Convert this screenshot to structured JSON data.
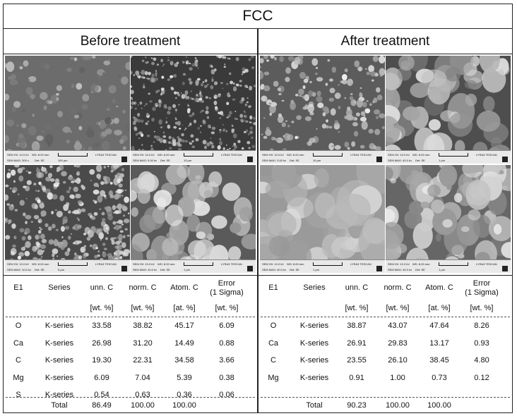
{
  "title": "FCC",
  "panels": [
    {
      "heading": "Before treatment",
      "micrographs": [
        {
          "hv": "SEM HV: 10.0 kV",
          "wd": "WD: 8.00 mm",
          "mag": "SEM MAG: 300 x",
          "det": "Det: SE",
          "scale": "100 µm",
          "brand": "LYRA3 TESCAN"
        },
        {
          "hv": "SEM HV: 10.0 kV",
          "wd": "WD: 8.00 mm",
          "mag": "SEM MAG: 5.00 kx",
          "det": "Det: SE",
          "scale": "10 µm",
          "brand": "LYRA3 TESCAN"
        },
        {
          "hv": "SEM HV: 10.0 kV",
          "wd": "WD: 8.00 mm",
          "mag": "SEM MAG: 10.0 kx",
          "det": "Det: SE",
          "scale": "5 µm",
          "brand": "LYRA3 TESCAN"
        },
        {
          "hv": "SEM HV: 10.0 kV",
          "wd": "WD: 8.00 mm",
          "mag": "SEM MAG: 40.0 kx",
          "det": "Det: SE",
          "scale": "1 µm",
          "brand": "LYRA3 TESCAN"
        }
      ],
      "table": {
        "headers": [
          "E1",
          "Series",
          "unn. C",
          "norm. C",
          "Atom. C",
          "Error\n(1 Sigma)"
        ],
        "units": [
          "",
          "",
          "[wt. %]",
          "[wt. %]",
          "[at. %]",
          "[wt. %]"
        ],
        "rows": [
          [
            "O",
            "K-series",
            "33.58",
            "38.82",
            "45.17",
            "6.09"
          ],
          [
            "Ca",
            "K-series",
            "26.98",
            "31.20",
            "14.49",
            "0.88"
          ],
          [
            "C",
            "K-series",
            "19.30",
            "22.31",
            "34.58",
            "3.66"
          ],
          [
            "Mg",
            "K-series",
            "6.09",
            "7.04",
            "5.39",
            "0.38"
          ],
          [
            "S",
            "K-series",
            "0.54",
            "0.63",
            "0.36",
            "0.06"
          ]
        ],
        "total": [
          "",
          "Total",
          "86.49",
          "100.00",
          "100.00",
          ""
        ]
      }
    },
    {
      "heading": "After treatment",
      "micrographs": [
        {
          "hv": "SEM HV: 10.0 kV",
          "wd": "WD: 8.00 mm",
          "mag": "SEM MAG: 3.00 kx",
          "det": "Det: SE",
          "scale": "10 µm",
          "brand": "LYRA3 TESCAN"
        },
        {
          "hv": "SEM HV: 10.0 kV",
          "wd": "WD: 8.00 mm",
          "mag": "SEM MAG: 40.0 kx",
          "det": "Det: SE",
          "scale": "1 µm",
          "brand": "LYRA3 TESCAN"
        },
        {
          "hv": "SEM HV: 10.0 kV",
          "wd": "WD: 8.00 mm",
          "mag": "SEM MAG: 40.0 kx",
          "det": "Det: SE",
          "scale": "1 µm",
          "brand": "LYRA3 TESCAN"
        },
        {
          "hv": "SEM HV: 10.0 kV",
          "wd": "WD: 8.00 mm",
          "mag": "SEM MAG: 40.0 kx",
          "det": "Det: SE",
          "scale": "1 µm",
          "brand": "LYRA3 TESCAN"
        }
      ],
      "table": {
        "headers": [
          "E1",
          "Series",
          "unn. C",
          "norm. C",
          "Atom. C",
          "Error\n(1 Sigma)"
        ],
        "units": [
          "",
          "",
          "[wt. %]",
          "[wt. %]",
          "[at. %]",
          "[wt. %]"
        ],
        "rows": [
          [
            "O",
            "K-series",
            "38.87",
            "43.07",
            "47.64",
            "8.26"
          ],
          [
            "Ca",
            "K-series",
            "26.91",
            "29.83",
            "13.17",
            "0.93"
          ],
          [
            "C",
            "K-series",
            "23.55",
            "26.10",
            "38.45",
            "4.80"
          ],
          [
            "Mg",
            "K-series",
            "0.91",
            "1.00",
            "0.73",
            "0.12"
          ]
        ],
        "total": [
          "",
          "Total",
          "90.23",
          "100.00",
          "100.00",
          ""
        ]
      }
    }
  ]
}
